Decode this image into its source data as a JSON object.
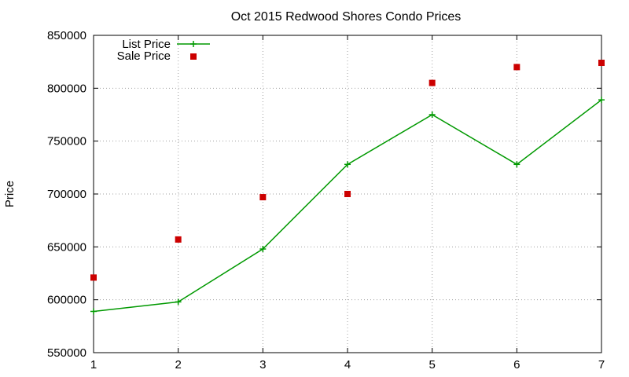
{
  "chart_data": {
    "type": "line",
    "title": "Oct 2015 Redwood Shores Condo Prices",
    "xlabel": "",
    "ylabel": "Price",
    "x": [
      1,
      2,
      3,
      4,
      5,
      6,
      7
    ],
    "xlim": [
      1,
      7
    ],
    "ylim": [
      550000,
      850000
    ],
    "xticks": [
      "1",
      "2",
      "3",
      "4",
      "5",
      "6",
      "7"
    ],
    "yticks": [
      "550000",
      "600000",
      "650000",
      "700000",
      "750000",
      "800000",
      "850000"
    ],
    "grid": true,
    "legend_position": "top-left",
    "series": [
      {
        "name": "List Price",
        "style": "line-with-plus-markers",
        "color": "#009900",
        "values": [
          589000,
          598000,
          648000,
          728000,
          775000,
          728000,
          789000
        ]
      },
      {
        "name": "Sale Price",
        "style": "square-markers",
        "color": "#cc0000",
        "values": [
          621000,
          657000,
          697000,
          700000,
          805000,
          820000,
          824000
        ]
      }
    ]
  }
}
